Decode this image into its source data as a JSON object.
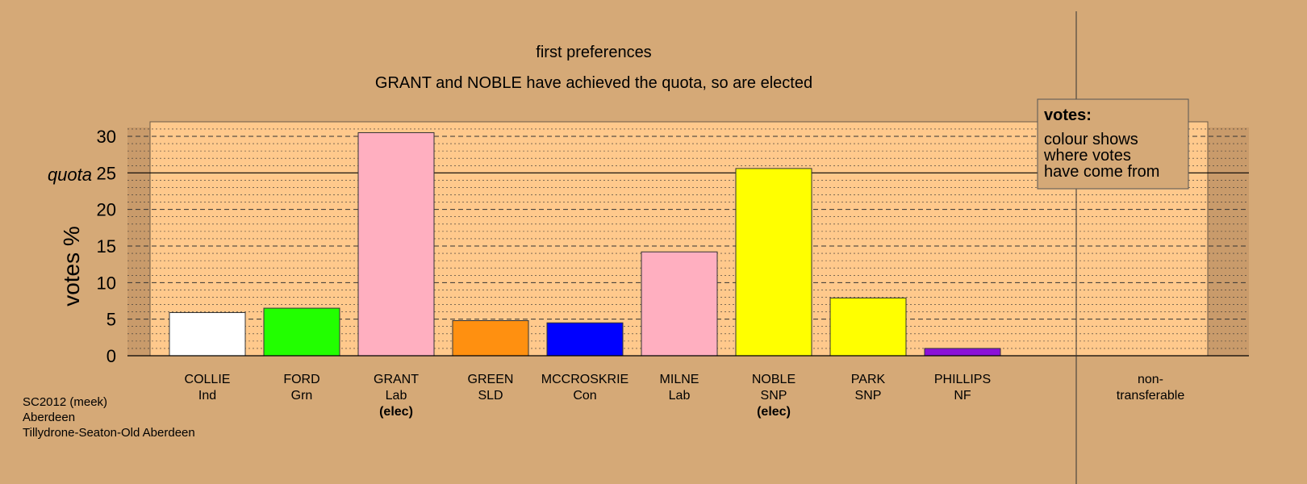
{
  "chart_data": {
    "type": "bar",
    "title": "first preferences",
    "subtitle": "GRANT and NOBLE have achieved the quota, so are elected",
    "ylabel": "votes %",
    "ylim": [
      0,
      32
    ],
    "yticks": [
      0,
      5,
      10,
      15,
      20,
      25,
      30
    ],
    "quota": 25,
    "quota_label": "quota",
    "grid": true,
    "categories": [
      {
        "name": "COLLIE",
        "party": "Ind",
        "value": 5.9,
        "color": "#FFFFFF",
        "elected": ""
      },
      {
        "name": "FORD",
        "party": "Grn",
        "value": 6.5,
        "color": "#22FF00",
        "elected": ""
      },
      {
        "name": "GRANT",
        "party": "Lab",
        "value": 30.5,
        "color": "#FFAFC0",
        "elected": "(elec)"
      },
      {
        "name": "GREEN",
        "party": "SLD",
        "value": 4.8,
        "color": "#FF9010",
        "elected": ""
      },
      {
        "name": "MCCROSKRIE",
        "party": "Con",
        "value": 4.5,
        "color": "#0000FF",
        "elected": ""
      },
      {
        "name": "MILNE",
        "party": "Lab",
        "value": 14.2,
        "color": "#FFAFC0",
        "elected": ""
      },
      {
        "name": "NOBLE",
        "party": "SNP",
        "value": 25.6,
        "color": "#FFFF00",
        "elected": "(elec)"
      },
      {
        "name": "PARK",
        "party": "SNP",
        "value": 7.9,
        "color": "#FFFF00",
        "elected": ""
      },
      {
        "name": "PHILLIPS",
        "party": "NF",
        "value": 1.0,
        "color": "#8B10D8",
        "elected": ""
      }
    ],
    "nontransferable": {
      "line1": "non-",
      "line2": "transferable",
      "value": 0
    },
    "legend": {
      "title": "votes:",
      "lines": [
        "colour shows",
        "where votes",
        "have come from"
      ],
      "position": "top-right"
    }
  },
  "footer": {
    "line1": "SC2012 (meek)",
    "line2": "Aberdeen",
    "line3": "Tillydrone-Seaton-Old Aberdeen"
  },
  "colors": {
    "background": "#D5A977",
    "plot_area": "#FFC98C",
    "shade": "#C99B6B"
  }
}
